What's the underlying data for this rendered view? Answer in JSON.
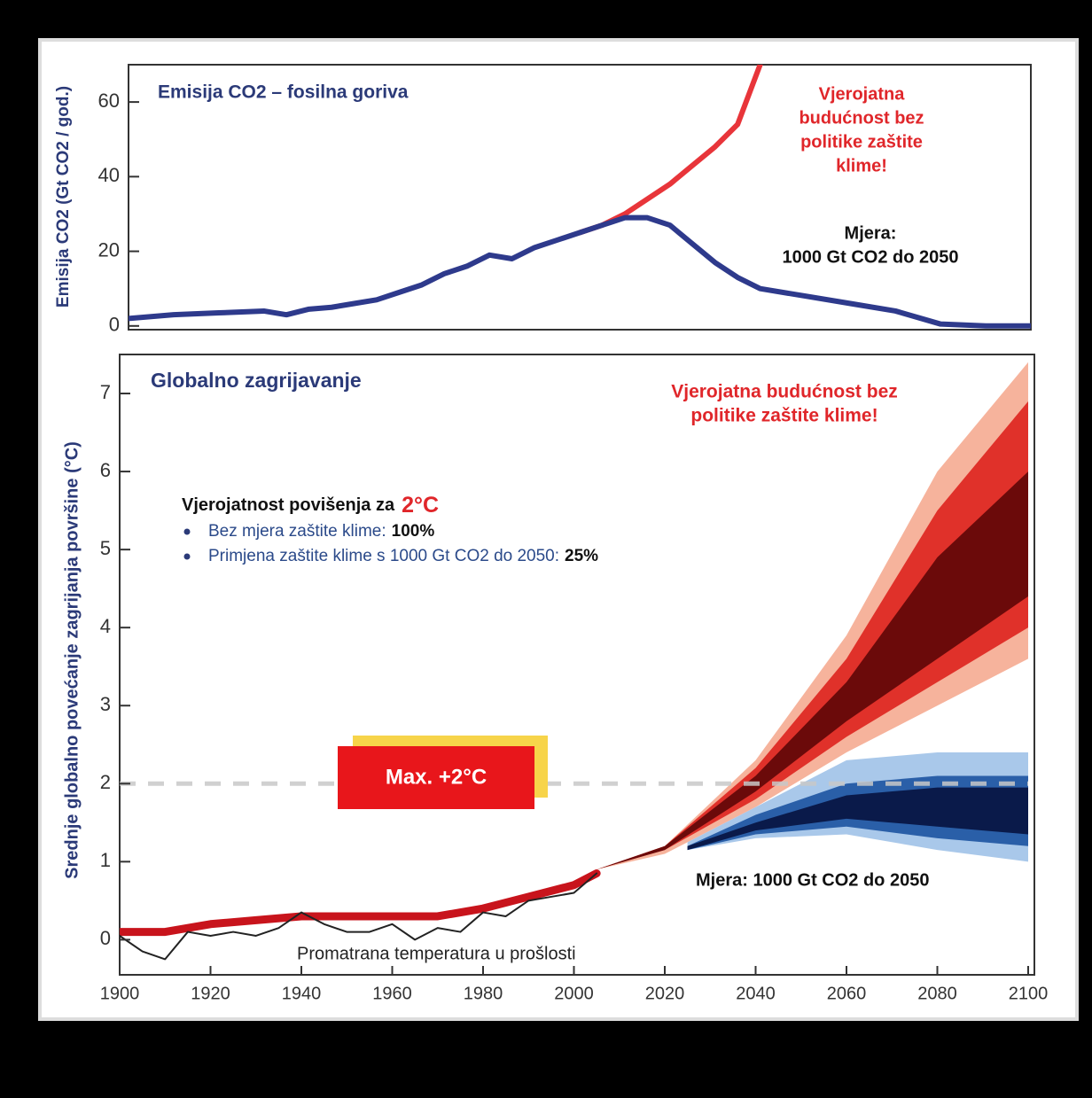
{
  "chart_data": [
    {
      "type": "line",
      "title": "Emisija CO2 – fosilna goriva",
      "y_label": "Emisija CO2 (Gt CO2 / god.)",
      "xlim": [
        1900,
        2100
      ],
      "ylim": [
        -1,
        70
      ],
      "yticks": [
        0,
        20,
        40,
        60
      ],
      "annotations": [
        {
          "lines": [
            "Vjerojatna",
            "budućnost bez",
            "politike zaštite",
            "klime!"
          ],
          "color": "#e0262a"
        },
        {
          "lines": [
            "Mjera:",
            "1000 Gt CO2 do 2050"
          ],
          "color": "#111111"
        }
      ],
      "series": [
        {
          "color": "#e8353a",
          "x": [
            2000,
            2005,
            2010,
            2015,
            2020,
            2025,
            2030,
            2035,
            2040
          ],
          "values": [
            25,
            27,
            30,
            34,
            38,
            43,
            48,
            54,
            70
          ]
        },
        {
          "color": "#2e3a8c",
          "x": [
            1900,
            1910,
            1920,
            1930,
            1935,
            1940,
            1945,
            1950,
            1955,
            1960,
            1965,
            1970,
            1975,
            1980,
            1985,
            1990,
            1995,
            2000,
            2005,
            2010,
            2015,
            2020,
            2025,
            2030,
            2035,
            2040,
            2050,
            2060,
            2070,
            2080,
            2090,
            2100
          ],
          "values": [
            2,
            3,
            3.5,
            4,
            3,
            4.5,
            5,
            6,
            7,
            9,
            11,
            14,
            16,
            19,
            18,
            21,
            23,
            25,
            27,
            29,
            29,
            27,
            22,
            17,
            13,
            10,
            8,
            6,
            4,
            0.5,
            0,
            0
          ]
        }
      ]
    },
    {
      "type": "line",
      "title": "Globalno zagrijavanje",
      "y_label": "Srednje globalno povećanje zagrijanja površine (°C)",
      "xlim": [
        1900,
        2100
      ],
      "ylim": [
        -0.45,
        7.5
      ],
      "yticks": [
        0,
        1,
        2,
        3,
        4,
        5,
        6,
        7
      ],
      "xticks": [
        1900,
        1920,
        1940,
        1960,
        1980,
        2000,
        2020,
        2040,
        2060,
        2080,
        2100
      ],
      "annotations": [
        {
          "lines": [
            "Vjerojatna budućnost bez",
            "politike zaštite klime!"
          ],
          "color": "#e0262a"
        }
      ],
      "probability": {
        "heading": "Vjerojatnost povišenja za",
        "heading_value": "2°C",
        "items": [
          {
            "text": "Bez mjera zaštite klime:",
            "value": "100%"
          },
          {
            "text": "Primjena zaštite klime s 1000 Gt CO2 do 2050:",
            "value": "25%"
          }
        ]
      },
      "threshold": 2,
      "threshold_label": "Max. +2°C",
      "measure_label": "Mjera: 1000 Gt CO2 do 2050",
      "observed_label": "Promatrana temperatura u prošlosti",
      "bands": [
        {
          "color": "#f6b39c",
          "x": [
            2005,
            2020,
            2040,
            2060,
            2080,
            2100
          ],
          "lower": [
            0.9,
            1.1,
            1.7,
            2.4,
            3,
            3.6
          ],
          "upper": [
            0.9,
            1.2,
            2.3,
            3.9,
            6,
            7.4
          ]
        },
        {
          "color": "#e0312a",
          "x": [
            2005,
            2020,
            2040,
            2060,
            2080,
            2100
          ],
          "lower": [
            0.9,
            1.15,
            1.8,
            2.6,
            3.3,
            4
          ],
          "upper": [
            0.9,
            1.2,
            2.2,
            3.6,
            5.5,
            6.9
          ]
        },
        {
          "color": "#6b0a0a",
          "x": [
            2005,
            2020,
            2040,
            2060,
            2080,
            2100
          ],
          "lower": [
            0.9,
            1.15,
            1.9,
            2.8,
            3.6,
            4.4
          ],
          "upper": [
            0.9,
            1.2,
            2.1,
            3.3,
            4.9,
            6
          ]
        },
        {
          "color": "#a9c8ea",
          "x": [
            2025,
            2040,
            2060,
            2080,
            2100
          ],
          "lower": [
            1.15,
            1.3,
            1.35,
            1.15,
            1
          ],
          "upper": [
            1.25,
            1.7,
            2.3,
            2.4,
            2.4
          ]
        },
        {
          "color": "#2a5fa8",
          "x": [
            2025,
            2040,
            2060,
            2080,
            2100
          ],
          "lower": [
            1.15,
            1.35,
            1.45,
            1.3,
            1.2
          ],
          "upper": [
            1.2,
            1.6,
            2,
            2.1,
            2.1
          ]
        },
        {
          "color": "#0a1a4a",
          "x": [
            2025,
            2040,
            2060,
            2080,
            2100
          ],
          "lower": [
            1.15,
            1.4,
            1.55,
            1.45,
            1.35
          ],
          "upper": [
            1.2,
            1.5,
            1.85,
            1.95,
            1.95
          ]
        }
      ],
      "series": [
        {
          "color": "#c8141c",
          "width": 9,
          "x": [
            1900,
            1910,
            1920,
            1930,
            1940,
            1950,
            1960,
            1970,
            1980,
            1990,
            2000,
            2005
          ],
          "values": [
            0.1,
            0.1,
            0.2,
            0.25,
            0.3,
            0.3,
            0.3,
            0.3,
            0.4,
            0.55,
            0.7,
            0.85
          ]
        },
        {
          "color": "#222222",
          "width": 2,
          "x": [
            1900,
            1905,
            1910,
            1915,
            1920,
            1925,
            1930,
            1935,
            1940,
            1945,
            1950,
            1955,
            1960,
            1965,
            1970,
            1975,
            1980,
            1985,
            1990,
            1995,
            2000,
            2005
          ],
          "values": [
            0.05,
            -0.15,
            -0.25,
            0.1,
            0.05,
            0.1,
            0.05,
            0.15,
            0.35,
            0.2,
            0.1,
            0.1,
            0.2,
            0,
            0.15,
            0.1,
            0.35,
            0.3,
            0.5,
            0.55,
            0.6,
            0.85
          ]
        }
      ]
    }
  ]
}
